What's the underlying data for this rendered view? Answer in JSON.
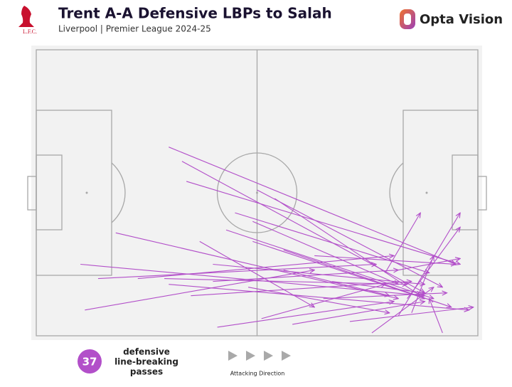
{
  "chart_data": {
    "type": "pass-map",
    "title": "Trent A-A Defensive LBPs to Salah",
    "subtitle": "Liverpool | Premier League 2024-25",
    "club_badge_text": "L.F.C.",
    "brand": "Opta Vision",
    "count": 37,
    "count_label": [
      "defensive",
      "line-breaking",
      "passes"
    ],
    "direction_label": "Attacking Direction",
    "color": "#b24fc9",
    "xlim": [
      0,
      100
    ],
    "ylim": [
      0,
      100
    ],
    "passes": {
      "x_start": [
        30,
        33,
        34,
        18,
        10,
        11,
        14,
        23,
        30,
        35,
        40,
        43,
        45,
        50,
        54,
        49,
        56,
        63,
        49,
        37,
        41,
        51,
        58,
        71,
        76,
        79,
        82,
        84,
        82,
        85,
        92,
        65,
        48,
        40,
        56,
        29,
        67
      ],
      "y_start": [
        34,
        39,
        46,
        64,
        75,
        91,
        80,
        80,
        82,
        86,
        75,
        63,
        57,
        49,
        52,
        60,
        70,
        72,
        67,
        67,
        97,
        94,
        96,
        95,
        99,
        78,
        93,
        87,
        77,
        92,
        99,
        87,
        83,
        81,
        77,
        80,
        81
      ],
      "x_end": [
        95,
        88,
        96,
        82,
        88,
        63,
        77,
        81,
        98,
        85,
        88,
        90,
        89,
        92,
        87,
        82,
        94,
        95,
        88,
        63,
        81,
        79,
        88,
        99,
        90,
        87,
        96,
        96,
        96,
        90,
        89,
        93,
        80,
        82,
        80,
        84,
        88
      ],
      "y_end": [
        75,
        85,
        75,
        87,
        86,
        77,
        75,
        72,
        91,
        81,
        82,
        87,
        78,
        83,
        86,
        82,
        90,
        75,
        87,
        90,
        88,
        82,
        88,
        90,
        83,
        57,
        57,
        62,
        73,
        72,
        87,
        85,
        92,
        77,
        86,
        82,
        85
      ]
    }
  }
}
